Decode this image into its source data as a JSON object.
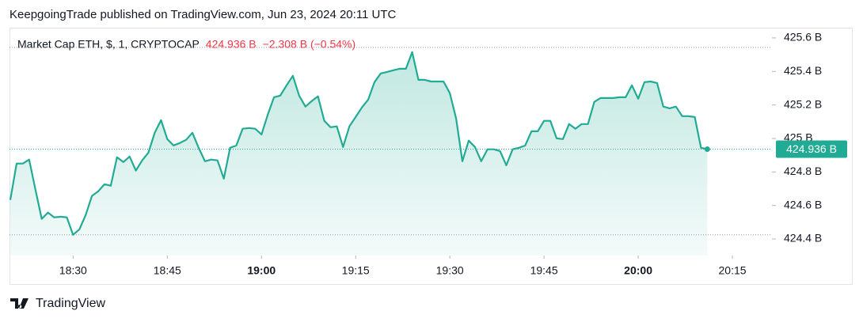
{
  "header": {
    "publisher": "KeepgoingTrade published on TradingView.com, Jun 23, 2024 20:11 UTC"
  },
  "footer": {
    "brand": "TradingView"
  },
  "chart_data": {
    "type": "area",
    "symbol": "Market Cap ETH, $, 1, CRYPTOCAP",
    "last_label": "424.936 B",
    "change_label": "−2.308 B (−0.54%)",
    "change_color": "#f23645",
    "x": [
      1100,
      1101,
      1102,
      1103,
      1104,
      1105,
      1106,
      1107,
      1108,
      1109,
      1110,
      1111,
      1112,
      1113,
      1114,
      1115,
      1116,
      1117,
      1118,
      1119,
      1120,
      1121,
      1122,
      1123,
      1124,
      1125,
      1126,
      1127,
      1128,
      1129,
      1130,
      1131,
      1132,
      1133,
      1134,
      1135,
      1136,
      1137,
      1138,
      1139,
      1140,
      1141,
      1142,
      1143,
      1144,
      1145,
      1146,
      1147,
      1148,
      1149,
      1150,
      1151,
      1152,
      1153,
      1154,
      1155,
      1156,
      1157,
      1158,
      1159,
      1160,
      1161,
      1162,
      1163,
      1164,
      1165,
      1166,
      1167,
      1168,
      1169,
      1170,
      1171,
      1172,
      1173,
      1174,
      1175,
      1176,
      1177,
      1178,
      1179,
      1180,
      1181,
      1182,
      1183,
      1184,
      1185,
      1186,
      1187,
      1188,
      1189,
      1190,
      1191,
      1192,
      1193,
      1194,
      1195,
      1196,
      1197,
      1198,
      1199,
      1200,
      1201,
      1202,
      1203,
      1204,
      1205,
      1206,
      1207,
      1208,
      1209,
      1210,
      1211
    ],
    "series": [
      {
        "color": "#22ab94",
        "values": [
          424.633,
          424.85,
          424.85,
          424.874,
          424.694,
          424.52,
          424.558,
          424.529,
          424.533,
          424.529,
          424.425,
          424.458,
          424.543,
          424.657,
          424.685,
          424.727,
          424.718,
          424.888,
          424.859,
          424.892,
          424.808,
          424.869,
          424.916,
          425.034,
          425.109,
          424.996,
          424.958,
          424.973,
          424.992,
          425.034,
          424.944,
          424.864,
          424.874,
          424.869,
          424.76,
          424.944,
          424.958,
          425.058,
          425.062,
          425.058,
          425.024,
          425.142,
          425.246,
          425.256,
          425.317,
          425.374,
          425.256,
          425.19,
          425.223,
          425.251,
          425.105,
          425.067,
          425.072,
          424.949,
          425.072,
          425.128,
          425.185,
          425.232,
          425.336,
          425.388,
          425.397,
          425.407,
          425.416,
          425.416,
          425.515,
          425.35,
          425.35,
          425.34,
          425.34,
          425.34,
          425.27,
          425.119,
          424.864,
          424.987,
          424.949,
          424.864,
          424.935,
          424.935,
          424.925,
          424.84,
          424.935,
          424.944,
          424.958,
          425.043,
          425.043,
          425.105,
          425.105,
          425.001,
          424.996,
          425.086,
          425.058,
          425.086,
          425.086,
          425.218,
          425.241,
          425.241,
          425.241,
          425.246,
          425.246,
          425.317,
          425.237,
          425.336,
          425.34,
          425.331,
          425.19,
          425.18,
          425.19,
          425.133,
          425.133,
          425.128,
          424.944,
          424.936
        ]
      }
    ],
    "xlim": [
      1099.87,
      1221.3
    ],
    "xticks": [
      {
        "value": 1110,
        "label": "18:30"
      },
      {
        "value": 1125,
        "label": "18:45"
      },
      {
        "value": 1140,
        "label": "19:00"
      },
      {
        "value": 1155,
        "label": "19:15"
      },
      {
        "value": 1170,
        "label": "19:30"
      },
      {
        "value": 1185,
        "label": "19:45"
      },
      {
        "value": 1200,
        "label": "20:00"
      },
      {
        "value": 1215,
        "label": "20:15"
      }
    ],
    "ylim": [
      424.301,
      425.661
    ],
    "yticks": [
      {
        "value": 424.4,
        "label": "424.4 B"
      },
      {
        "value": 424.6,
        "label": "424.6 B"
      },
      {
        "value": 424.8,
        "label": "424.8 B"
      },
      {
        "value": 425,
        "label": "425 B"
      },
      {
        "value": 425.2,
        "label": "425.2 B"
      },
      {
        "value": 425.4,
        "label": "425.4 B"
      },
      {
        "value": 425.6,
        "label": "425.6 B"
      }
    ]
  }
}
